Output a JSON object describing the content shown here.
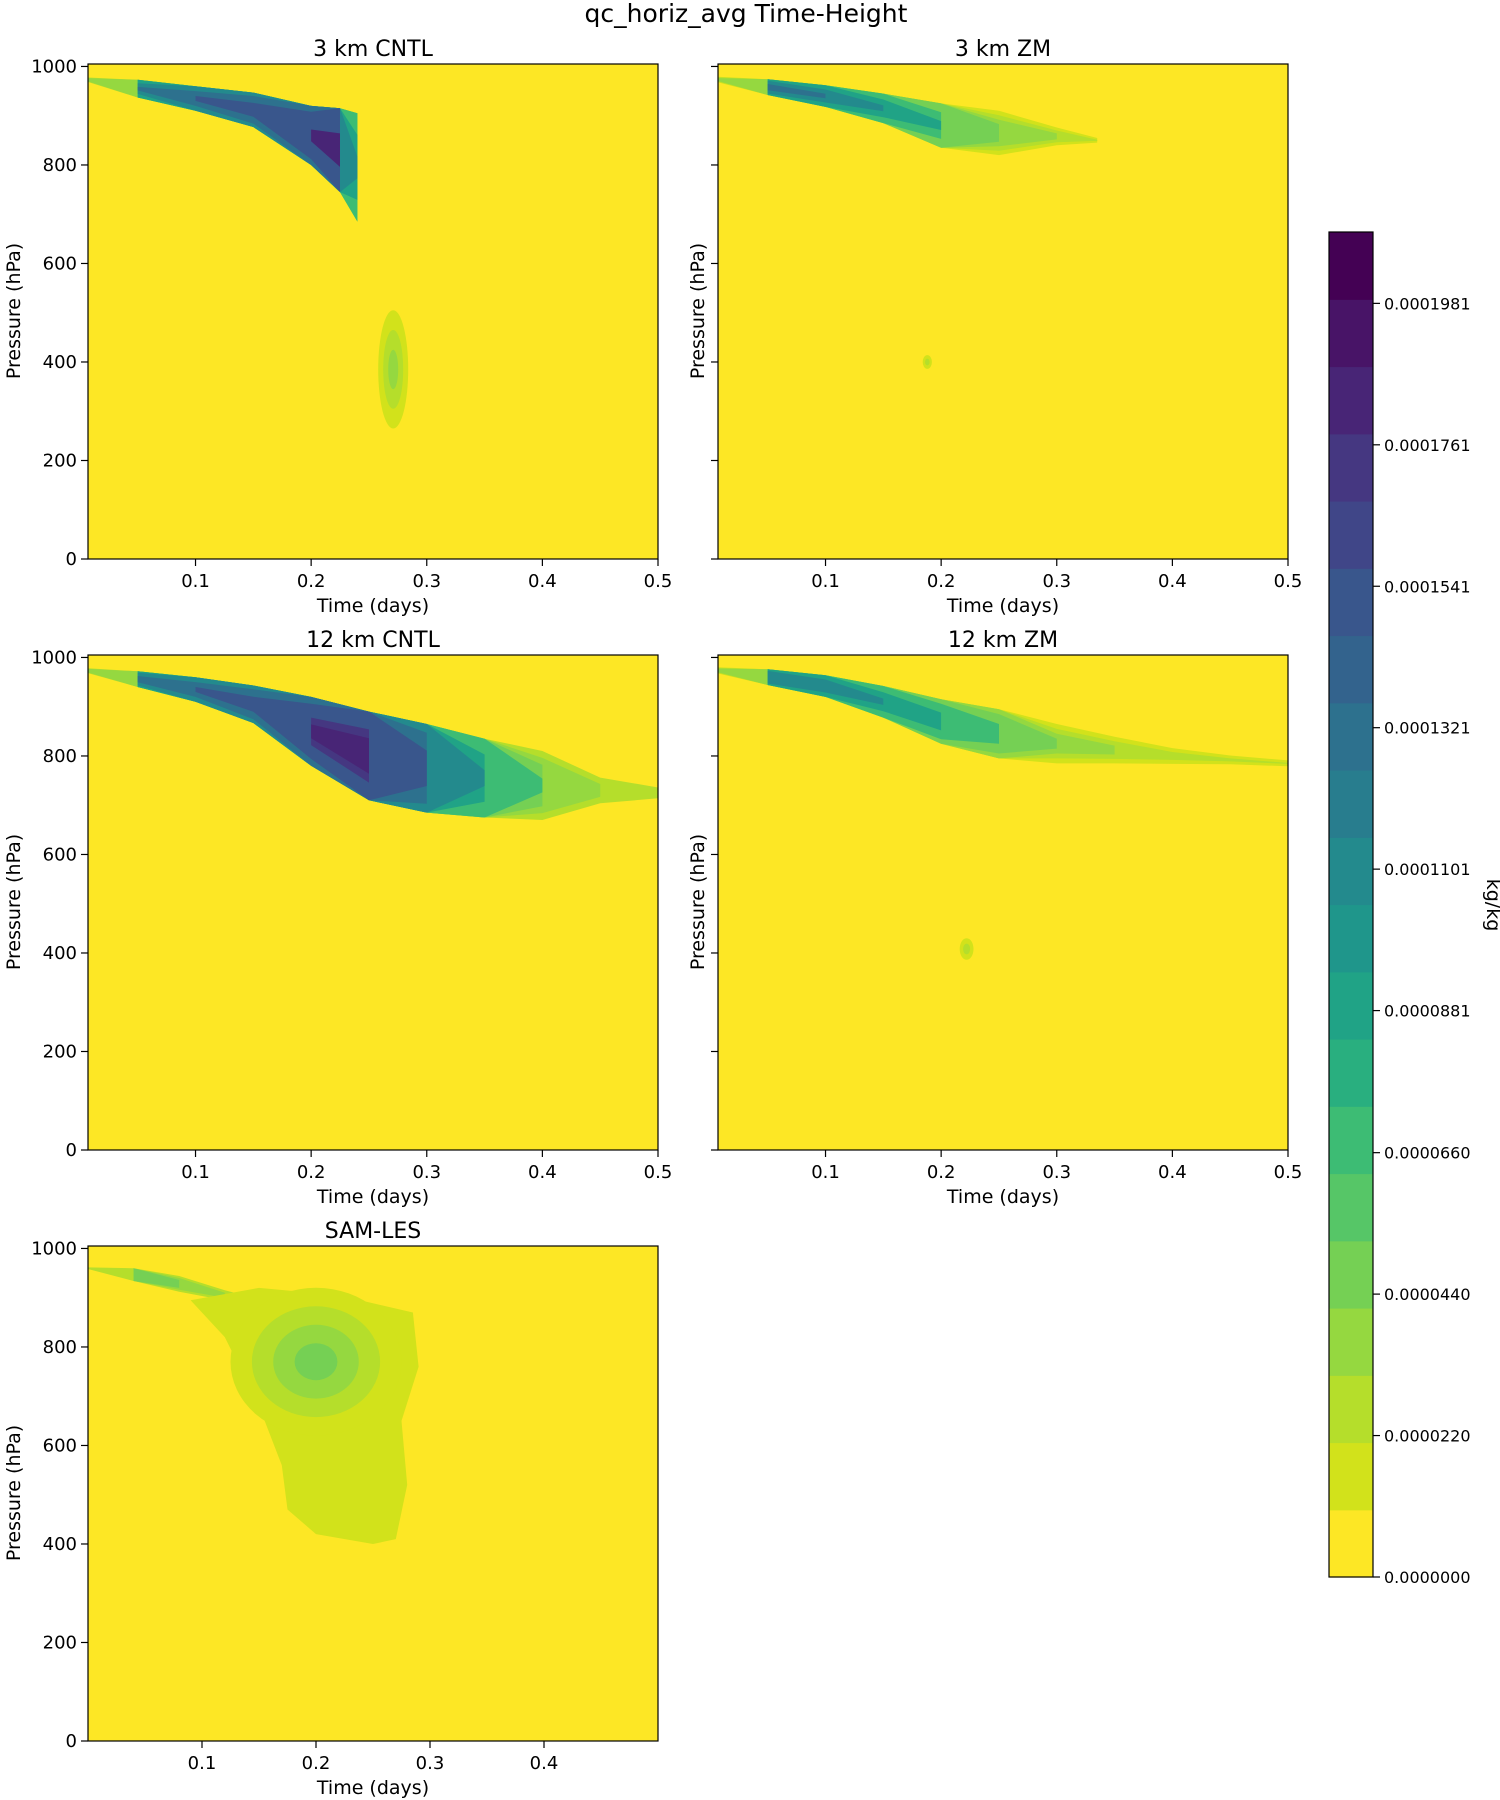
{
  "chart_data": {
    "type": "contour",
    "title": "qc_horiz_avg Time-Height",
    "value_units": "kg/kg",
    "colormap_levels": [
      "#fde725",
      "#d2e21b",
      "#b5de2b",
      "#95d840",
      "#75d054",
      "#56c667",
      "#3dbc74",
      "#29af7f",
      "#20a386",
      "#1f968b",
      "#238a8d",
      "#287d8e",
      "#2d718e",
      "#33638d",
      "#39568c",
      "#404688",
      "#453781",
      "#482576",
      "#481467",
      "#440154"
    ],
    "colorbar": {
      "label": "kg/kg",
      "vmin": 0,
      "vmax": 0.0002092,
      "tick_values": [
        0,
        2.2e-05,
        4.4e-05,
        6.6e-05,
        8.81e-05,
        0.0001101,
        0.0001321,
        0.0001541,
        0.0001761,
        0.0001981
      ],
      "tick_labels": [
        "0.0000000",
        "0.0000220",
        "0.0000440",
        "0.0000660",
        "0.0000881",
        "0.0001101",
        "0.0001321",
        "0.0001541",
        "0.0001761",
        "0.0001981"
      ]
    },
    "panels": [
      {
        "title": "3 km CNTL",
        "xlabel": "Time (days)",
        "ylabel": "Pressure (hPa)",
        "xlim": [
          0.007,
          0.5
        ],
        "ylim": [
          1005,
          0
        ],
        "xticks": [
          0.1,
          0.2,
          0.3,
          0.4,
          0.5
        ],
        "xtick_labels": [
          "0.1",
          "0.2",
          "0.3",
          "0.4",
          "0.5"
        ],
        "yticks": [
          0,
          200,
          400,
          600,
          800,
          1000
        ],
        "ytick_labels": [
          "0",
          "200",
          "400",
          "600",
          "800",
          "1000"
        ],
        "show_ylabels": true,
        "features": [
          {
            "type": "plume",
            "points": [
              [
                0.0,
                976,
                8,
                2.5
              ],
              [
                0.05,
                955,
                18,
                12
              ],
              [
                0.1,
                935,
                25,
                14
              ],
              [
                0.15,
                912,
                35,
                15
              ],
              [
                0.2,
                860,
                60,
                17
              ],
              [
                0.225,
                830,
                85,
                18
              ],
              [
                0.24,
                795,
                110,
                10
              ]
            ],
            "levels": [
              2,
              3,
              4,
              6,
              8,
              10,
              12,
              14,
              17
            ]
          },
          {
            "type": "blob",
            "cx": 0.271,
            "cp": 385,
            "rx": 0.013,
            "rp": 120,
            "peak": 3
          }
        ]
      },
      {
        "title": "3 km ZM",
        "xlabel": "Time (days)",
        "ylabel": "Pressure (hPa)",
        "xlim": [
          0.007,
          0.5
        ],
        "ylim": [
          1005,
          0
        ],
        "xticks": [
          0.1,
          0.2,
          0.3,
          0.4,
          0.5
        ],
        "xtick_labels": [
          "0.1",
          "0.2",
          "0.3",
          "0.4",
          "0.5"
        ],
        "yticks": [
          0,
          200,
          400,
          600,
          800,
          1000
        ],
        "ytick_labels": [
          "0",
          "200",
          "400",
          "600",
          "800",
          "1000"
        ],
        "show_ylabels": false,
        "features": [
          {
            "type": "plume",
            "points": [
              [
                0.0,
                976,
                8,
                2.5
              ],
              [
                0.05,
                958,
                16,
                13
              ],
              [
                0.1,
                940,
                22,
                12
              ],
              [
                0.15,
                915,
                30,
                10
              ],
              [
                0.2,
                880,
                45,
                8
              ],
              [
                0.25,
                865,
                45,
                5
              ],
              [
                0.3,
                858,
                30,
                3
              ],
              [
                0.335,
                850,
                18,
                1.3
              ]
            ],
            "levels": [
              1,
              2,
              3,
              4,
              6,
              8,
              10,
              12
            ]
          },
          {
            "type": "blob",
            "cx": 0.188,
            "cp": 400,
            "rx": 0.004,
            "rp": 14,
            "peak": 2
          }
        ]
      },
      {
        "title": "12 km CNTL",
        "xlabel": "Time (days)",
        "ylabel": "Pressure (hPa)",
        "xlim": [
          0.007,
          0.5
        ],
        "ylim": [
          1005,
          0
        ],
        "xticks": [
          0.1,
          0.2,
          0.3,
          0.4,
          0.5
        ],
        "xtick_labels": [
          "0.1",
          "0.2",
          "0.3",
          "0.4",
          "0.5"
        ],
        "yticks": [
          0,
          200,
          400,
          600,
          800,
          1000
        ],
        "ytick_labels": [
          "0",
          "200",
          "400",
          "600",
          "800",
          "1000"
        ],
        "show_ylabels": true,
        "features": [
          {
            "type": "plume",
            "points": [
              [
                0.0,
                976,
                8,
                3
              ],
              [
                0.05,
                956,
                16,
                13
              ],
              [
                0.1,
                935,
                25,
                14
              ],
              [
                0.15,
                905,
                38,
                15
              ],
              [
                0.2,
                850,
                70,
                17
              ],
              [
                0.25,
                800,
                90,
                18
              ],
              [
                0.3,
                775,
                90,
                15
              ],
              [
                0.35,
                755,
                80,
                10
              ],
              [
                0.4,
                740,
                70,
                6
              ],
              [
                0.45,
                730,
                65,
                3
              ],
              [
                0.5,
                725,
                55,
                2
              ]
            ],
            "levels": [
              2,
              3,
              4,
              6,
              8,
              10,
              12,
              14,
              16,
              17
            ]
          }
        ]
      },
      {
        "title": "12 km ZM",
        "xlabel": "Time (days)",
        "ylabel": "Pressure (hPa)",
        "xlim": [
          0.007,
          0.5
        ],
        "ylim": [
          1005,
          0
        ],
        "xticks": [
          0.1,
          0.2,
          0.3,
          0.4,
          0.5
        ],
        "xtick_labels": [
          "0.1",
          "0.2",
          "0.3",
          "0.4",
          "0.5"
        ],
        "yticks": [
          0,
          200,
          400,
          600,
          800,
          1000
        ],
        "ytick_labels": [
          "0",
          "200",
          "400",
          "600",
          "800",
          "1000"
        ],
        "show_ylabels": false,
        "features": [
          {
            "type": "plume",
            "points": [
              [
                0.0,
                976,
                8,
                3
              ],
              [
                0.05,
                960,
                16,
                13
              ],
              [
                0.1,
                942,
                22,
                12
              ],
              [
                0.15,
                910,
                32,
                10
              ],
              [
                0.2,
                870,
                45,
                9
              ],
              [
                0.25,
                845,
                50,
                7
              ],
              [
                0.3,
                825,
                50,
                4
              ],
              [
                0.35,
                812,
                45,
                3
              ],
              [
                0.4,
                800,
                40,
                2
              ],
              [
                0.45,
                792,
                30,
                1.5
              ],
              [
                0.5,
                785,
                25,
                1.2
              ]
            ],
            "levels": [
              1,
              2,
              3,
              4,
              6,
              8,
              10
            ]
          },
          {
            "type": "blob",
            "cx": 0.222,
            "cp": 408,
            "rx": 0.006,
            "rp": 22,
            "peak": 2
          }
        ]
      },
      {
        "title": "SAM-LES",
        "xlabel": "Time (days)",
        "ylabel": "Pressure (hPa)",
        "xlim": [
          0.0,
          0.5
        ],
        "ylim": [
          1005,
          0
        ],
        "xticks": [
          0.1,
          0.2,
          0.3,
          0.4
        ],
        "xtick_labels": [
          "0.1",
          "0.2",
          "0.3",
          "0.4"
        ],
        "yticks": [
          0,
          200,
          400,
          600,
          800,
          1000
        ],
        "ytick_labels": [
          "0",
          "200",
          "400",
          "600",
          "800",
          "1000"
        ],
        "show_ylabels": true,
        "features": [
          {
            "type": "plume",
            "points": [
              [
                0.0,
                960,
                8,
                2
              ],
              [
                0.04,
                947,
                13,
                10
              ],
              [
                0.08,
                928,
                20,
                5
              ],
              [
                0.12,
                905,
                25,
                3
              ],
              [
                0.16,
                885,
                30,
                2
              ],
              [
                0.2,
                870,
                30,
                2
              ]
            ],
            "levels": [
              2,
              3,
              4,
              6,
              8
            ]
          },
          {
            "type": "region",
            "polygon": [
              [
                0.09,
                895
              ],
              [
                0.12,
                820
              ],
              [
                0.15,
                680
              ],
              [
                0.17,
                560
              ],
              [
                0.175,
                470
              ],
              [
                0.2,
                420
              ],
              [
                0.25,
                400
              ],
              [
                0.27,
                410
              ],
              [
                0.28,
                520
              ],
              [
                0.275,
                650
              ],
              [
                0.29,
                760
              ],
              [
                0.285,
                870
              ],
              [
                0.22,
                905
              ],
              [
                0.15,
                920
              ]
            ],
            "level": 1
          },
          {
            "type": "blob",
            "cx": 0.2,
            "cp": 770,
            "rx": 0.075,
            "rp": 150,
            "peak": 4
          }
        ]
      }
    ]
  }
}
